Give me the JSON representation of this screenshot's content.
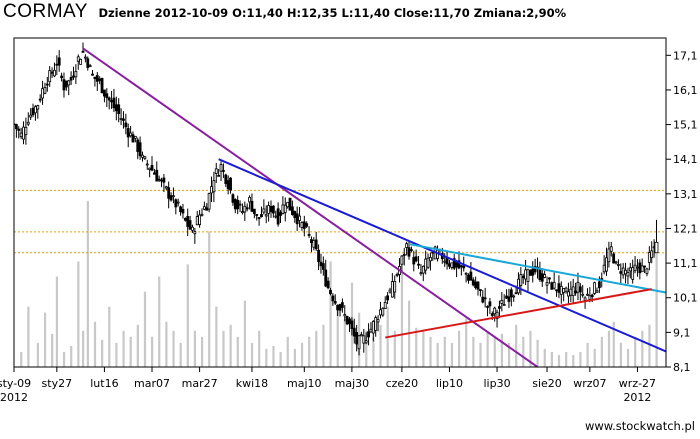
{
  "header": {
    "ticker": "CORMAY",
    "info": "Dzienne 2012-10-09 O:11,40 H:12,35 L:11,40 Close:11,70 Zmiana:2,90%"
  },
  "watermark": "www.stockwatch.pl",
  "chart_data": {
    "type": "candlestick",
    "title": "CORMAY",
    "x_labels": [
      {
        "label": "sty-09",
        "sub": "2012",
        "day": 0
      },
      {
        "label": "sty27",
        "sub": "",
        "day": 18
      },
      {
        "label": "lut16",
        "sub": "",
        "day": 38
      },
      {
        "label": "mar07",
        "sub": "",
        "day": 58
      },
      {
        "label": "mar27",
        "sub": "",
        "day": 78
      },
      {
        "label": "kwi18",
        "sub": "",
        "day": 100
      },
      {
        "label": "maj10",
        "sub": "",
        "day": 122
      },
      {
        "label": "maj30",
        "sub": "",
        "day": 142
      },
      {
        "label": "cze20",
        "sub": "",
        "day": 163
      },
      {
        "label": "lip10",
        "sub": "",
        "day": 183
      },
      {
        "label": "lip30",
        "sub": "",
        "day": 203
      },
      {
        "label": "sie20",
        "sub": "",
        "day": 224
      },
      {
        "label": "wrz07",
        "sub": "",
        "day": 242
      },
      {
        "label": "wrz-27",
        "sub": "2012",
        "day": 262
      }
    ],
    "x_range": [
      0,
      274
    ],
    "y_ticks": [
      "17,1",
      "16,1",
      "15,1",
      "14,1",
      "13,1",
      "12,1",
      "11,1",
      "10,1",
      "9,1",
      "8,1"
    ],
    "y_range": [
      8.1,
      17.6
    ],
    "horizontal_levels": [
      13.2,
      12.0,
      11.4
    ],
    "close_path": [
      [
        0,
        15.1
      ],
      [
        3,
        14.8
      ],
      [
        6,
        15.3
      ],
      [
        10,
        15.7
      ],
      [
        13,
        16.3
      ],
      [
        16,
        16.6
      ],
      [
        18,
        16.9
      ],
      [
        21,
        16.2
      ],
      [
        24,
        16.4
      ],
      [
        27,
        17.0
      ],
      [
        29,
        17.2
      ],
      [
        31,
        16.9
      ],
      [
        33,
        16.5
      ],
      [
        36,
        16.3
      ],
      [
        39,
        15.9
      ],
      [
        42,
        15.6
      ],
      [
        45,
        15.3
      ],
      [
        48,
        14.9
      ],
      [
        51,
        14.6
      ],
      [
        54,
        14.1
      ],
      [
        57,
        13.9
      ],
      [
        60,
        13.6
      ],
      [
        63,
        13.3
      ],
      [
        66,
        13.0
      ],
      [
        69,
        12.7
      ],
      [
        72,
        12.3
      ],
      [
        75,
        12.0
      ],
      [
        78,
        12.5
      ],
      [
        81,
        12.8
      ],
      [
        84,
        13.6
      ],
      [
        87,
        13.9
      ],
      [
        90,
        13.4
      ],
      [
        93,
        12.8
      ],
      [
        96,
        12.6
      ],
      [
        99,
        12.9
      ],
      [
        102,
        12.4
      ],
      [
        105,
        12.5
      ],
      [
        108,
        12.7
      ],
      [
        111,
        12.4
      ],
      [
        114,
        12.9
      ],
      [
        117,
        12.6
      ],
      [
        120,
        12.3
      ],
      [
        123,
        12.0
      ],
      [
        126,
        11.6
      ],
      [
        129,
        11.0
      ],
      [
        132,
        10.4
      ],
      [
        135,
        10.0
      ],
      [
        138,
        9.7
      ],
      [
        141,
        9.3
      ],
      [
        144,
        8.8
      ],
      [
        147,
        8.9
      ],
      [
        150,
        9.2
      ],
      [
        153,
        9.6
      ],
      [
        156,
        10.0
      ],
      [
        159,
        10.4
      ],
      [
        162,
        11.0
      ],
      [
        165,
        11.6
      ],
      [
        168,
        11.2
      ],
      [
        171,
        10.8
      ],
      [
        174,
        11.2
      ],
      [
        177,
        11.4
      ],
      [
        180,
        11.3
      ],
      [
        183,
        11.1
      ],
      [
        186,
        11.0
      ],
      [
        189,
        10.9
      ],
      [
        192,
        10.6
      ],
      [
        195,
        10.3
      ],
      [
        198,
        10.0
      ],
      [
        201,
        9.6
      ],
      [
        204,
        9.8
      ],
      [
        207,
        10.1
      ],
      [
        210,
        10.3
      ],
      [
        213,
        10.6
      ],
      [
        216,
        10.8
      ],
      [
        219,
        10.9
      ],
      [
        222,
        10.7
      ],
      [
        225,
        10.5
      ],
      [
        228,
        10.4
      ],
      [
        231,
        10.2
      ],
      [
        234,
        10.3
      ],
      [
        237,
        10.4
      ],
      [
        240,
        10.1
      ],
      [
        243,
        10.3
      ],
      [
        246,
        10.5
      ],
      [
        249,
        11.2
      ],
      [
        251,
        11.5
      ],
      [
        253,
        11.0
      ],
      [
        256,
        10.9
      ],
      [
        259,
        10.8
      ],
      [
        262,
        11.0
      ],
      [
        265,
        10.9
      ],
      [
        268,
        11.4
      ],
      [
        270,
        11.7
      ]
    ],
    "last_candle": {
      "day": 270,
      "open": 11.4,
      "high": 12.35,
      "low": 11.4,
      "close": 11.7
    },
    "volume_bars": [
      [
        3,
        0.05
      ],
      [
        6,
        0.2
      ],
      [
        10,
        0.08
      ],
      [
        13,
        0.18
      ],
      [
        16,
        0.11
      ],
      [
        18,
        0.3
      ],
      [
        21,
        0.05
      ],
      [
        24,
        0.07
      ],
      [
        27,
        0.35
      ],
      [
        29,
        0.12
      ],
      [
        31,
        0.55
      ],
      [
        34,
        0.15
      ],
      [
        37,
        0.09
      ],
      [
        40,
        0.2
      ],
      [
        43,
        0.08
      ],
      [
        46,
        0.12
      ],
      [
        49,
        0.1
      ],
      [
        52,
        0.14
      ],
      [
        55,
        0.25
      ],
      [
        58,
        0.1
      ],
      [
        61,
        0.3
      ],
      [
        64,
        0.15
      ],
      [
        67,
        0.12
      ],
      [
        70,
        0.08
      ],
      [
        73,
        0.34
      ],
      [
        76,
        0.12
      ],
      [
        79,
        0.1
      ],
      [
        82,
        0.45
      ],
      [
        85,
        0.2
      ],
      [
        88,
        0.12
      ],
      [
        91,
        0.14
      ],
      [
        94,
        0.1
      ],
      [
        97,
        0.22
      ],
      [
        100,
        0.08
      ],
      [
        103,
        0.12
      ],
      [
        106,
        0.06
      ],
      [
        109,
        0.07
      ],
      [
        112,
        0.05
      ],
      [
        115,
        0.1
      ],
      [
        118,
        0.06
      ],
      [
        121,
        0.08
      ],
      [
        124,
        0.1
      ],
      [
        127,
        0.12
      ],
      [
        130,
        0.14
      ],
      [
        133,
        0.35
      ],
      [
        136,
        0.2
      ],
      [
        139,
        0.16
      ],
      [
        142,
        0.28
      ],
      [
        145,
        0.18
      ],
      [
        148,
        0.12
      ],
      [
        151,
        0.1
      ],
      [
        154,
        0.14
      ],
      [
        157,
        0.2
      ],
      [
        160,
        0.12
      ],
      [
        163,
        0.32
      ],
      [
        166,
        0.22
      ],
      [
        169,
        0.13
      ],
      [
        172,
        0.12
      ],
      [
        175,
        0.1
      ],
      [
        178,
        0.08
      ],
      [
        181,
        0.1
      ],
      [
        184,
        0.08
      ],
      [
        187,
        0.12
      ],
      [
        190,
        0.16
      ],
      [
        193,
        0.1
      ],
      [
        196,
        0.08
      ],
      [
        199,
        0.12
      ],
      [
        202,
        0.1
      ],
      [
        205,
        0.11
      ],
      [
        208,
        0.08
      ],
      [
        211,
        0.14
      ],
      [
        214,
        0.1
      ],
      [
        217,
        0.12
      ],
      [
        220,
        0.09
      ],
      [
        223,
        0.06
      ],
      [
        226,
        0.05
      ],
      [
        229,
        0.04
      ],
      [
        232,
        0.05
      ],
      [
        235,
        0.04
      ],
      [
        238,
        0.05
      ],
      [
        241,
        0.08
      ],
      [
        244,
        0.06
      ],
      [
        247,
        0.1
      ],
      [
        250,
        0.12
      ],
      [
        252,
        0.15
      ],
      [
        255,
        0.08
      ],
      [
        258,
        0.06
      ],
      [
        261,
        0.1
      ],
      [
        264,
        0.12
      ],
      [
        267,
        0.14
      ],
      [
        270,
        0.38
      ]
    ],
    "trend_lines": [
      {
        "name": "purple",
        "color": "#8a1ea0",
        "from": [
          29,
          17.3
        ],
        "to": [
          220,
          8.1
        ]
      },
      {
        "name": "blue",
        "color": "#1a1ad6",
        "from": [
          86,
          14.1
        ],
        "to": [
          274,
          8.55
        ]
      },
      {
        "name": "cyan",
        "color": "#18a8d8",
        "from": [
          166,
          11.65
        ],
        "to": [
          274,
          10.25
        ]
      },
      {
        "name": "red",
        "color": "#d81818",
        "from": [
          156,
          8.95
        ],
        "to": [
          268,
          10.35
        ]
      }
    ],
    "grid": false,
    "colors": {
      "candle": "#000000",
      "volume": "#c8c8c8",
      "level_line": "#e8a000",
      "frame": "#000000"
    }
  }
}
